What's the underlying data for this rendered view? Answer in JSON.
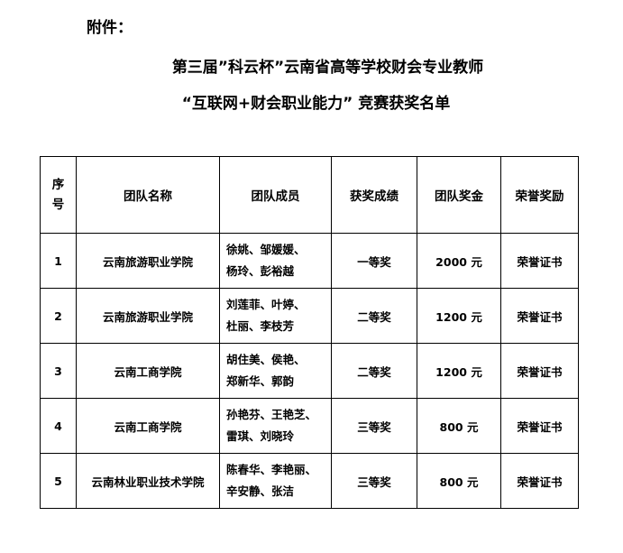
{
  "header": {
    "attachment_label": "附件：",
    "title_line1": "第三届”科云杯”云南省高等学校财会专业教师",
    "title_line2": "“互联网+财会职业能力” 竞赛获奖名单"
  },
  "table": {
    "columns": [
      "序号",
      "团队名称",
      "团队成员",
      "获奖成绩",
      "团队奖金",
      "荣誉奖励"
    ],
    "rows": [
      {
        "no": "1",
        "team": "云南旅游职业学院",
        "members1": "徐姚、邹媛媛、",
        "members2": "杨玲、彭裕越",
        "award": "一等奖",
        "bonus": "2000 元",
        "honor": "荣誉证书"
      },
      {
        "no": "2",
        "team": "云南旅游职业学院",
        "members1": "刘莲菲、叶婷、",
        "members2": "杜丽、李枝芳",
        "award": "二等奖",
        "bonus": "1200 元",
        "honor": "荣誉证书"
      },
      {
        "no": "3",
        "team": "云南工商学院",
        "members1": "胡住美、侯艳、",
        "members2": "郑新华、郭韵",
        "award": "二等奖",
        "bonus": "1200 元",
        "honor": "荣誉证书"
      },
      {
        "no": "4",
        "team": "云南工商学院",
        "members1": "孙艳芬、王艳芝、",
        "members2": "雷琪、刘晓玲",
        "award": "三等奖",
        "bonus": "800 元",
        "honor": "荣誉证书"
      },
      {
        "no": "5",
        "team": "云南林业职业技术学院",
        "members1": "陈春华、李艳丽、",
        "members2": "辛安静、张洁",
        "award": "三等奖",
        "bonus": "800 元",
        "honor": "荣誉证书"
      }
    ]
  }
}
